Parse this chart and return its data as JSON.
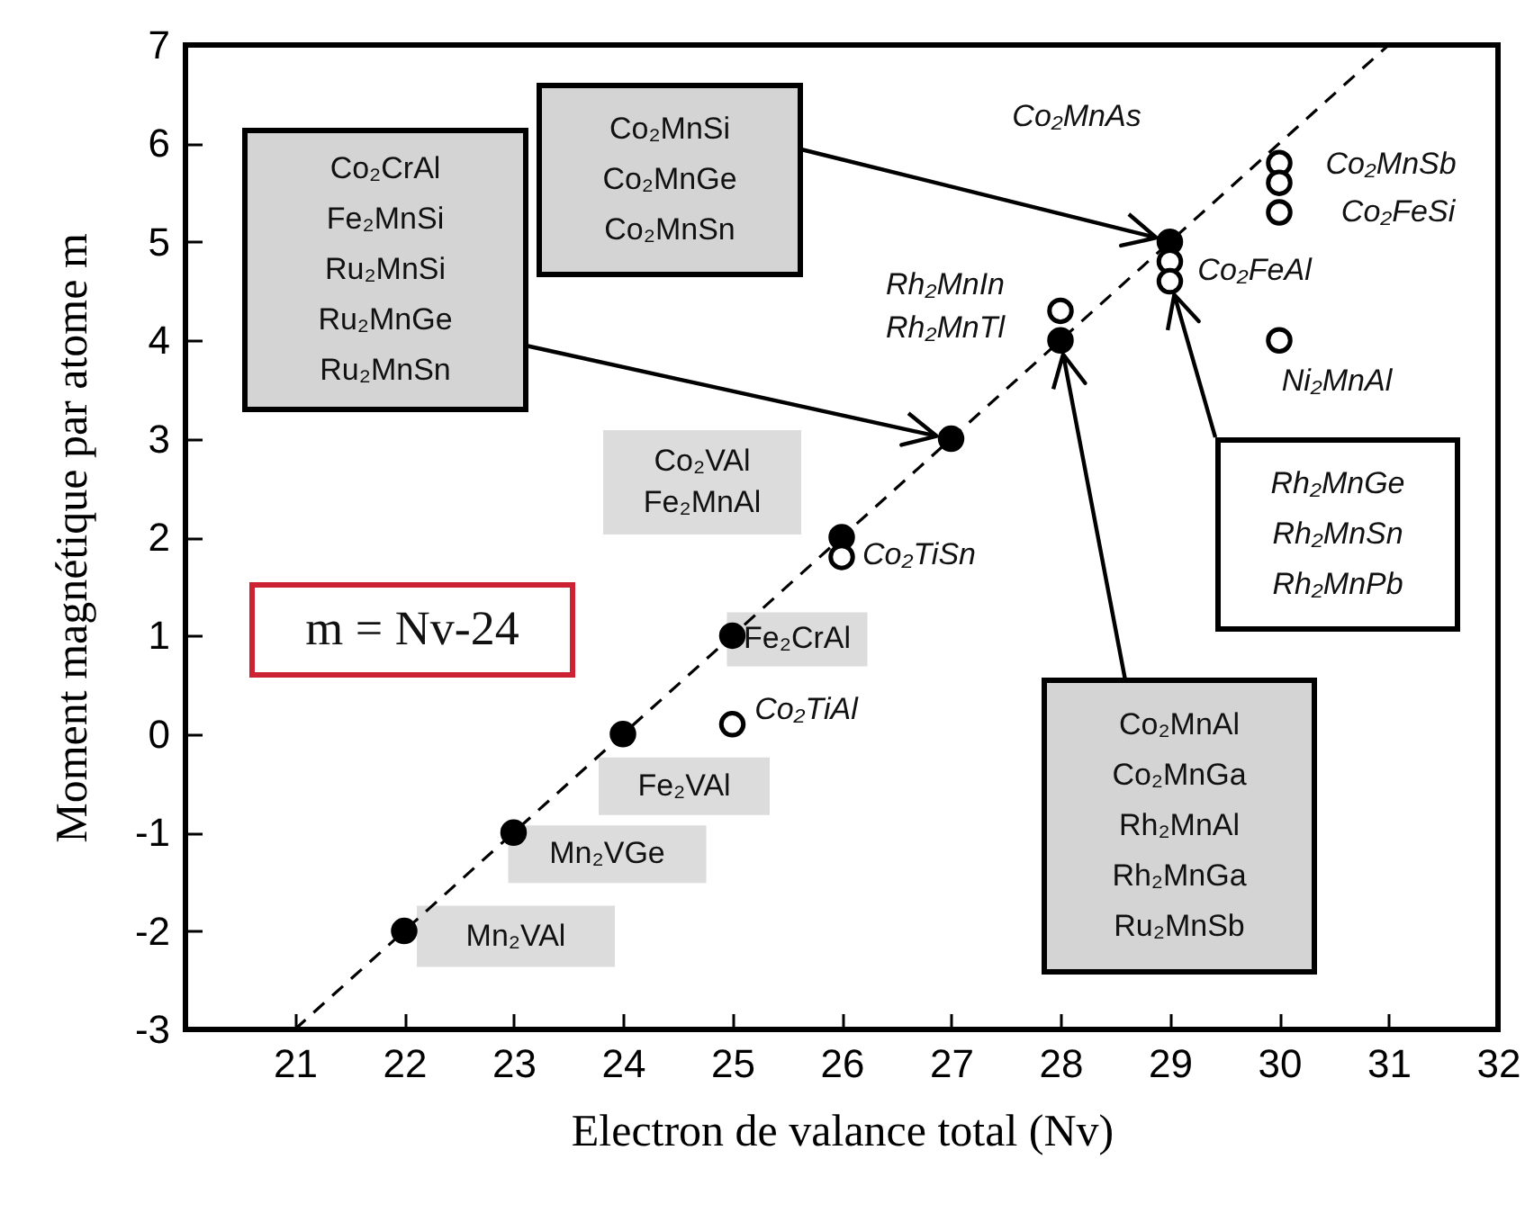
{
  "chart_data": {
    "type": "scatter",
    "xlabel": "Electron de valance total (Nv)",
    "ylabel": "Moment magnétique par atome m",
    "xlim": [
      20,
      32
    ],
    "ylim": [
      -3,
      7
    ],
    "xticks": [
      21,
      22,
      23,
      24,
      25,
      26,
      27,
      28,
      29,
      30,
      31,
      32
    ],
    "yticks": [
      -3,
      -2,
      -1,
      0,
      1,
      2,
      3,
      4,
      5,
      6,
      7
    ],
    "series": [
      {
        "type": "line",
        "color": "#000000",
        "line_style": "dashed",
        "x": [
          21,
          31
        ],
        "values": [
          -3,
          7
        ]
      },
      {
        "type": "scatter",
        "marker": "circle",
        "color": "#000000",
        "x": [
          22,
          23,
          24,
          25,
          26,
          27,
          28,
          29
        ],
        "values": [
          -2,
          -1,
          0,
          1,
          2,
          3,
          4,
          5
        ]
      },
      {
        "type": "scatter",
        "marker": "circle",
        "color": "#ffffff",
        "x": [
          25,
          26,
          28,
          29,
          29,
          30,
          30,
          30,
          30
        ],
        "values": [
          0.1,
          1.8,
          4.3,
          4.8,
          4.6,
          5.8,
          5.6,
          5.3,
          4
        ]
      }
    ],
    "annotations": [
      "Co₂CrAl\nFe₂MnSi\nRu₂MnSi\nRu₂MnGe\nRu₂MnSn",
      "Co₂MnSi\nCo₂MnGe\nCo₂MnSn",
      "Co₂VAl\nFe₂MnAl",
      {
        "text": "Rh₂MnIn\nRh₂MnTl",
        "x": 28,
        "y": 4.3
      },
      "Co₂MnAs",
      {
        "text": "Co₂MnSb",
        "x": 30,
        "y": 5.8
      },
      {
        "text": "Co₂FeSi",
        "x": 30,
        "y": 5.3
      },
      {
        "text": "Co₂FeAl",
        "x": 29,
        "y": 4.6
      },
      {
        "text": "Ni₂MnAl",
        "x": 30,
        "y": 4
      },
      "Rh₂MnGe\nRh₂MnSn\nRh₂MnPb",
      {
        "text": "Co₂TiSn",
        "x": 26,
        "y": 1.8
      },
      {
        "text": "Fe₂CrAl",
        "x": 25,
        "y": 1
      },
      {
        "text": "Co₂TiAl",
        "x": 25,
        "y": 0.1
      },
      {
        "text": "Fe₂VAl",
        "x": 24,
        "y": 0
      },
      {
        "text": "Mn₂VGe",
        "x": 23,
        "y": -1
      },
      {
        "text": "Mn₂VAl",
        "x": 22,
        "y": -2
      },
      "Co₂MnAl\nCo₂MnGa\nRh₂MnAl\nRh₂MnGa\nRu₂MnSb",
      "m = Nv-24"
    ]
  }
}
